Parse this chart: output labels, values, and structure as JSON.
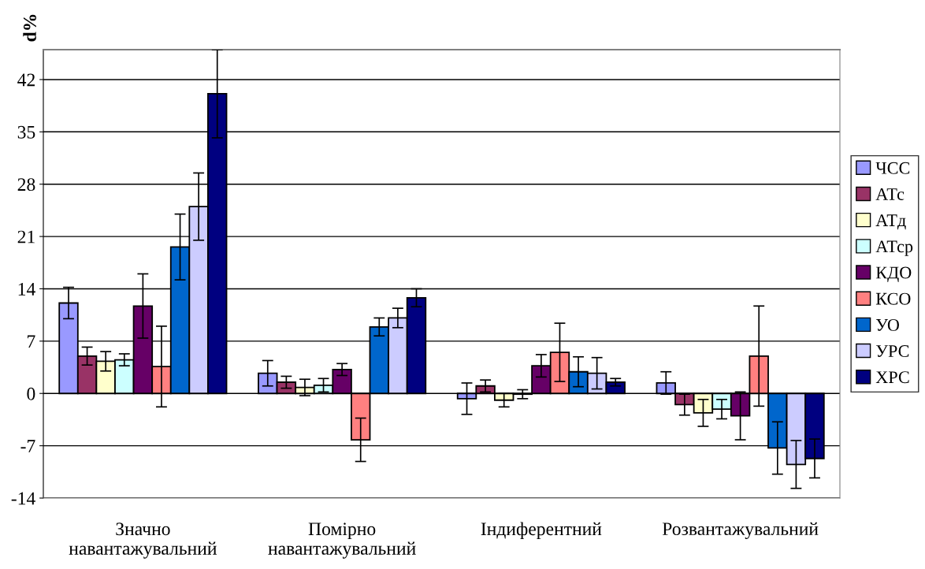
{
  "chart_data": {
    "type": "bar",
    "ylabel": "d%",
    "categories": [
      "Значно\nнавантажувальний",
      "Помірно\nнавантажувальний",
      "Індиферентний",
      "Розвантажувальний"
    ],
    "series": [
      {
        "name": "ЧСС",
        "color": "#9999ff",
        "values": [
          12.1,
          2.7,
          -0.7,
          1.4
        ],
        "errors": [
          2.1,
          1.7,
          2.1,
          1.5
        ]
      },
      {
        "name": "АТс",
        "color": "#993366",
        "values": [
          5.0,
          1.5,
          1.0,
          -1.5
        ],
        "errors": [
          1.2,
          0.8,
          0.8,
          1.4
        ]
      },
      {
        "name": "АТд",
        "color": "#ffffcc",
        "values": [
          4.3,
          0.8,
          -0.9,
          -2.6
        ],
        "errors": [
          1.3,
          1.1,
          0.9,
          1.8
        ]
      },
      {
        "name": "АТср",
        "color": "#ccffff",
        "values": [
          4.5,
          1.1,
          -0.1,
          -2.1
        ],
        "errors": [
          0.8,
          0.9,
          0.6,
          1.3
        ]
      },
      {
        "name": "КДО",
        "color": "#660066",
        "values": [
          11.7,
          3.2,
          3.7,
          -3.0
        ],
        "errors": [
          4.3,
          0.8,
          1.5,
          3.2
        ]
      },
      {
        "name": "КСО",
        "color": "#ff8080",
        "values": [
          3.6,
          -6.2,
          5.5,
          5.0
        ],
        "errors": [
          5.4,
          2.9,
          3.9,
          6.7
        ]
      },
      {
        "name": "УО",
        "color": "#0066cc",
        "values": [
          19.6,
          8.9,
          2.9,
          -7.3
        ],
        "errors": [
          4.4,
          1.2,
          2.0,
          3.5
        ]
      },
      {
        "name": "УРС",
        "color": "#ccccff",
        "values": [
          25.0,
          10.1,
          2.7,
          -9.5
        ],
        "errors": [
          4.5,
          1.3,
          2.1,
          3.2
        ]
      },
      {
        "name": "ХРС",
        "color": "#000080",
        "values": [
          40.1,
          12.8,
          1.5,
          -8.7
        ],
        "errors": [
          5.9,
          1.2,
          0.5,
          2.6
        ]
      }
    ],
    "ylim": [
      -14,
      46
    ],
    "yticks": [
      -14,
      -7,
      0,
      7,
      14,
      21,
      28,
      35,
      42
    ],
    "grid": "y",
    "legend": "right"
  }
}
